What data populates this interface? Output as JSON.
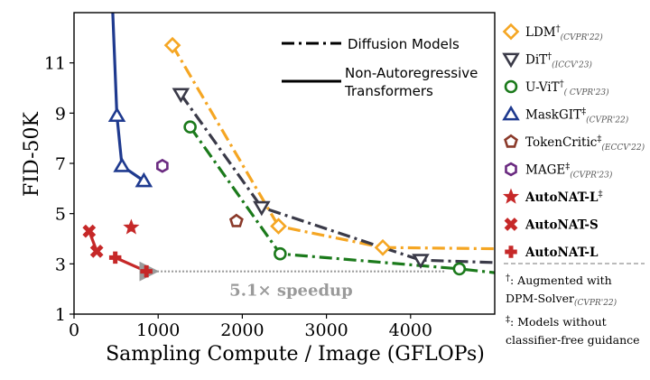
{
  "chart_data": {
    "type": "line",
    "xlabel": "Sampling Compute / Image (GFLOPs)",
    "ylabel": "FID-50K",
    "xlim": [
      0,
      5000
    ],
    "ylim": [
      1,
      13
    ],
    "xticks": [
      "0",
      "1000",
      "2000",
      "3000",
      "4000"
    ],
    "yticks": [
      "1",
      "3",
      "5",
      "7",
      "9",
      "11"
    ],
    "series": [
      {
        "name": "LDM",
        "sup": "†",
        "venue": "(CVPR'22)",
        "color": "#f5a623",
        "marker": "diamond",
        "line": "dashdot",
        "bold": false,
        "points": [
          [
            1170,
            11.7
          ],
          [
            2430,
            4.5
          ],
          [
            3670,
            3.65
          ],
          [
            5000,
            3.6
          ]
        ]
      },
      {
        "name": "DiT",
        "sup": "†",
        "venue": "(ICCV'23)",
        "color": "#3a3a48",
        "marker": "triangle-down",
        "line": "dashdot",
        "bold": false,
        "points": [
          [
            1270,
            9.75
          ],
          [
            2230,
            5.25
          ],
          [
            4120,
            3.15
          ],
          [
            5000,
            3.05
          ]
        ]
      },
      {
        "name": "U-ViT",
        "sup": "†",
        "venue": "( CVPR'23)",
        "color": "#1b7a1b",
        "marker": "circle",
        "line": "dashdot",
        "bold": false,
        "points": [
          [
            1380,
            8.45
          ],
          [
            2450,
            3.4
          ],
          [
            4580,
            2.8
          ],
          [
            5000,
            2.65
          ]
        ]
      },
      {
        "name": "MaskGIT",
        "sup": "‡",
        "venue": "(CVPR'22)",
        "color": "#1f3a8f",
        "marker": "triangle-up",
        "line": "solid",
        "bold": false,
        "points": [
          [
            460,
            13.0
          ],
          [
            510,
            8.9
          ],
          [
            570,
            6.9
          ],
          [
            830,
            6.3
          ]
        ]
      },
      {
        "name": "TokenCritic",
        "sup": "‡",
        "venue": "(ECCV'22)",
        "color": "#8b3a2a",
        "marker": "pentagon",
        "line": "none",
        "bold": false,
        "points": [
          [
            1930,
            4.7
          ]
        ]
      },
      {
        "name": "MAGE",
        "sup": "‡",
        "venue": "(CVPR'23)",
        "color": "#6a2a80",
        "marker": "hexagon",
        "line": "none",
        "bold": false,
        "points": [
          [
            1050,
            6.9
          ]
        ]
      },
      {
        "name": "AutoNAT-L",
        "sup": "‡",
        "venue": "",
        "color": "#c62828",
        "marker": "star",
        "line": "none",
        "bold": true,
        "points": [
          [
            680,
            4.45
          ]
        ]
      },
      {
        "name": "AutoNAT-S",
        "sup": "",
        "venue": "",
        "color": "#c62828",
        "marker": "x",
        "line": "solid",
        "bold": true,
        "points": [
          [
            180,
            4.3
          ],
          [
            270,
            3.5
          ]
        ]
      },
      {
        "name": "AutoNAT-L",
        "sup": "",
        "venue": "",
        "color": "#c62828",
        "marker": "plus",
        "line": "solid",
        "bold": true,
        "points": [
          [
            490,
            3.25
          ],
          [
            860,
            2.7
          ]
        ]
      }
    ],
    "line_legend": [
      {
        "label": "Diffusion Models",
        "style": "dashdot"
      },
      {
        "label": "Non-Autoregressive",
        "label2": "Transformers",
        "style": "solid"
      }
    ],
    "annotation": {
      "text": "5.1× speedup",
      "arrow_from": [
        4400,
        2.7
      ],
      "arrow_to": [
        900,
        2.7
      ]
    },
    "notes": [
      {
        "mark": "†",
        "line1": ": Augmented with",
        "line2": "DPM-Solver",
        "line2_venue": "(CVPR'22)"
      },
      {
        "mark": "‡",
        "line1": ": Models without",
        "line2": "classifier-free guidance"
      }
    ],
    "legend_position": "right"
  }
}
